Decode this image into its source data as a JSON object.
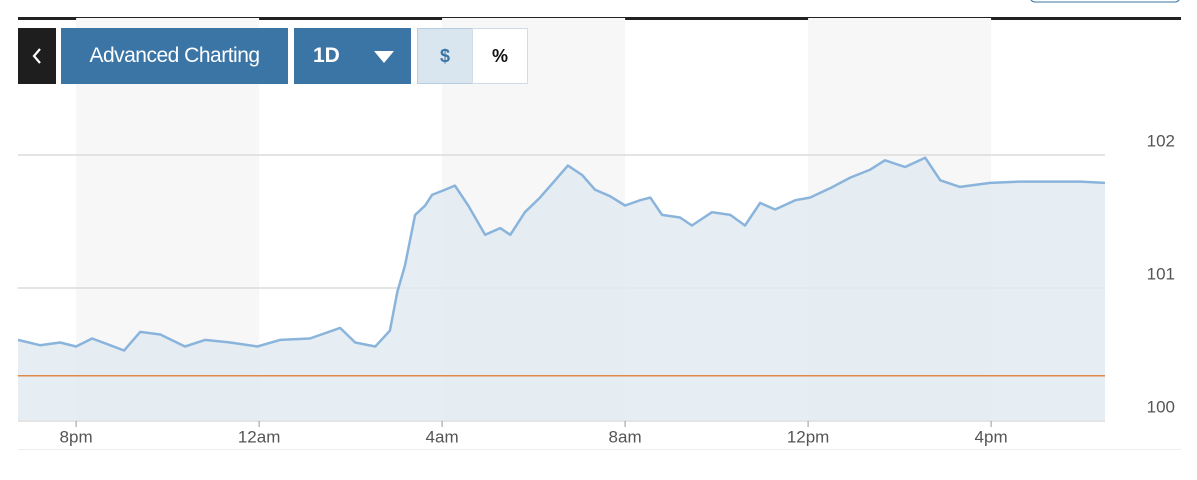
{
  "toolbar": {
    "primary": "Advanced Charting",
    "period": "1D",
    "units": [
      "$",
      "%"
    ]
  },
  "chart_data": {
    "type": "area",
    "x": [
      18.73,
      19.21,
      19.65,
      20.0,
      20.35,
      20.74,
      21.05,
      21.4,
      21.84,
      22.38,
      22.82,
      23.37,
      23.96,
      24.46,
      25.11,
      25.77,
      26.1,
      26.54,
      26.86,
      27.02,
      27.19,
      27.41,
      27.63,
      27.78,
      28.07,
      28.28,
      28.57,
      28.94,
      29.27,
      29.49,
      29.81,
      30.14,
      30.47,
      30.75,
      31.06,
      31.34,
      31.67,
      32.0,
      32.33,
      32.55,
      32.81,
      33.2,
      33.46,
      33.9,
      34.3,
      34.62,
      34.95,
      35.28,
      35.72,
      36.04,
      36.48,
      36.92,
      37.36,
      37.68,
      38.12,
      38.56,
      38.89,
      39.32,
      39.98,
      40.63,
      41.29,
      41.95,
      42.49
    ],
    "values": [
      100.61,
      100.57,
      100.59,
      100.56,
      100.62,
      100.57,
      100.53,
      100.67,
      100.65,
      100.56,
      100.61,
      100.59,
      100.56,
      100.61,
      100.62,
      100.7,
      100.59,
      100.56,
      100.68,
      100.97,
      101.17,
      101.55,
      101.62,
      101.7,
      101.74,
      101.77,
      101.62,
      101.4,
      101.45,
      101.4,
      101.57,
      101.68,
      101.81,
      101.92,
      101.85,
      101.74,
      101.69,
      101.62,
      101.66,
      101.68,
      101.55,
      101.53,
      101.47,
      101.57,
      101.55,
      101.47,
      101.64,
      101.59,
      101.66,
      101.68,
      101.75,
      101.83,
      101.89,
      101.96,
      101.91,
      101.98,
      101.81,
      101.76,
      101.79,
      101.8,
      101.8,
      101.8,
      101.79
    ],
    "color": "#8ab4dc",
    "fill": "#e2ebf2",
    "reference_value": 100.34,
    "reference_color": "#e0894a",
    "xlim": [
      18.73,
      42.49
    ],
    "xticks": [
      {
        "value": 20,
        "label": "8pm"
      },
      {
        "value": 24,
        "label": "12am"
      },
      {
        "value": 28,
        "label": "4am"
      },
      {
        "value": 32,
        "label": "8am"
      },
      {
        "value": 36,
        "label": "12pm"
      },
      {
        "value": 40,
        "label": "4pm"
      }
    ],
    "ylim": [
      100,
      102.2
    ],
    "yticks": [
      100,
      101,
      102
    ],
    "grid": true,
    "shaded_bands": true
  }
}
